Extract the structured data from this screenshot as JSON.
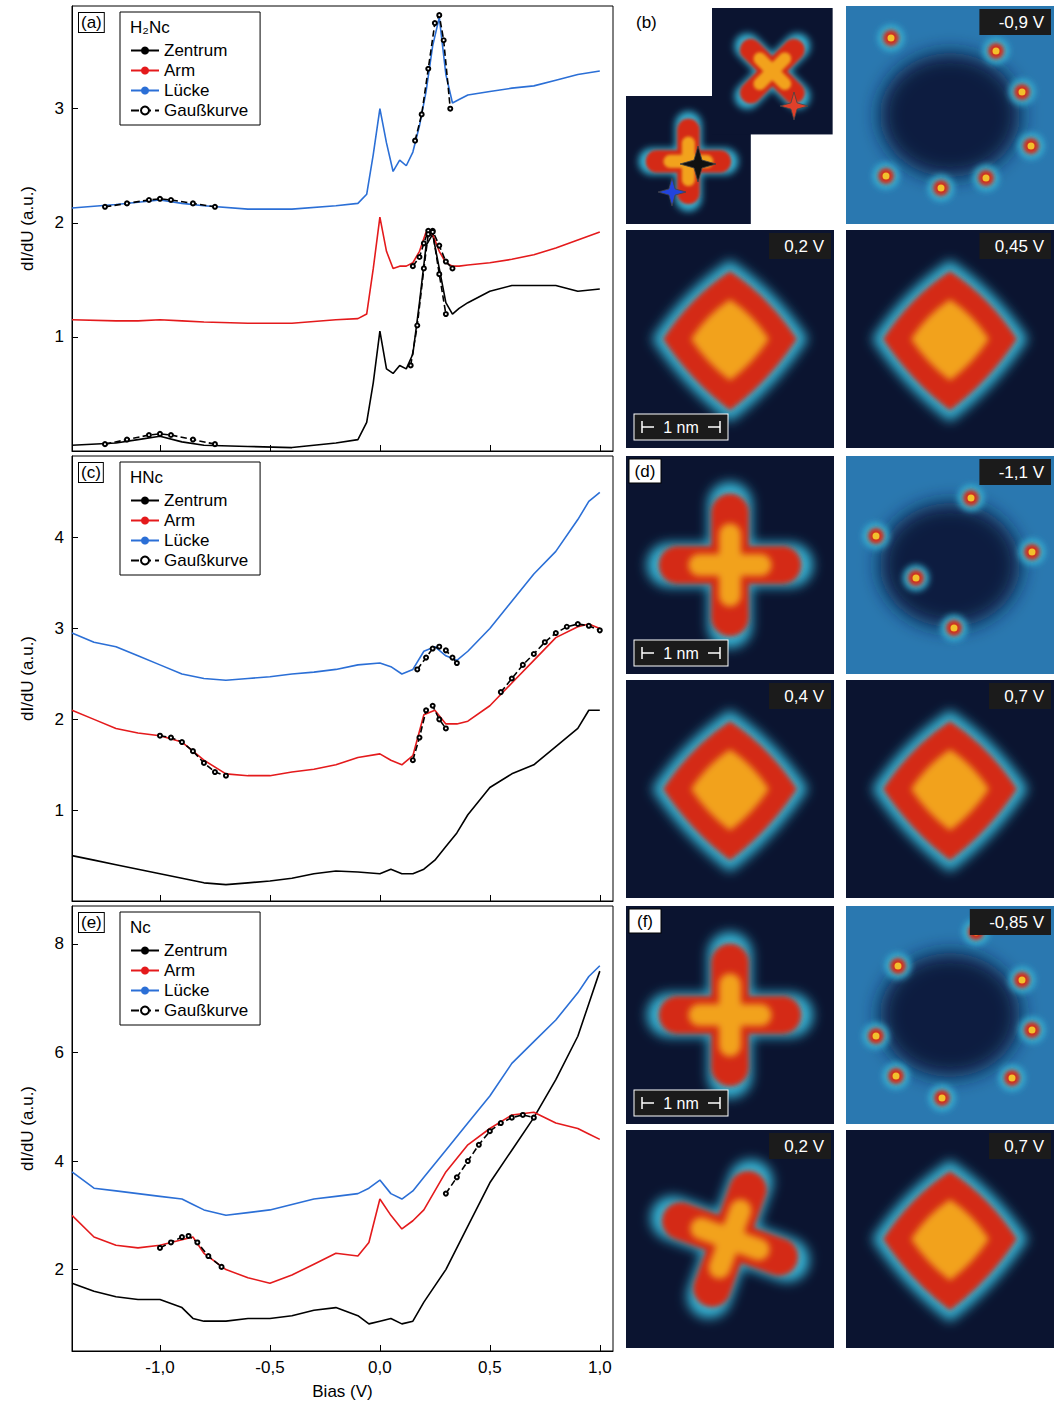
{
  "chart_data": [
    {
      "type": "line",
      "panel": "(a)",
      "legend_title": "H₂Nc",
      "y_label": "dI/dU (a.u.)",
      "legend": "upper left",
      "grid": false,
      "tick_labels": "y",
      "xlim": [
        -1.4,
        1.06
      ],
      "xticks": [
        {
          "value": -1,
          "label": "-1,0"
        },
        {
          "value": -0.5,
          "label": "-0,5"
        },
        {
          "value": 0,
          "label": "0,0"
        },
        {
          "value": 0.5,
          "label": "0,5"
        },
        {
          "value": 1,
          "label": "1,0"
        }
      ],
      "ylim": [
        0,
        3.9
      ],
      "yticks": [
        1,
        2,
        3
      ],
      "x": [
        -1.4,
        -1.2,
        -1.1,
        -1.0,
        -0.9,
        -0.8,
        -0.6,
        -0.4,
        -0.2,
        -0.1,
        -0.06,
        -0.03,
        0.0,
        0.03,
        0.06,
        0.09,
        0.12,
        0.15,
        0.18,
        0.21,
        0.24,
        0.27,
        0.3,
        0.33,
        0.36,
        0.4,
        0.5,
        0.6,
        0.7,
        0.8,
        0.9,
        1.0
      ],
      "series": [
        {
          "name": "Zentrum",
          "color": "#000000",
          "values": [
            0.05,
            0.07,
            0.1,
            0.13,
            0.08,
            0.05,
            0.04,
            0.03,
            0.07,
            0.1,
            0.25,
            0.6,
            1.05,
            0.72,
            0.68,
            0.75,
            0.72,
            0.85,
            1.3,
            1.8,
            1.9,
            1.6,
            1.3,
            1.2,
            1.25,
            1.3,
            1.4,
            1.45,
            1.45,
            1.45,
            1.4,
            1.42
          ]
        },
        {
          "name": "Arm",
          "color": "#e41a1c",
          "values": [
            1.15,
            1.14,
            1.14,
            1.15,
            1.14,
            1.13,
            1.12,
            1.12,
            1.15,
            1.16,
            1.2,
            1.6,
            2.05,
            1.75,
            1.6,
            1.62,
            1.62,
            1.65,
            1.75,
            1.92,
            1.9,
            1.75,
            1.65,
            1.62,
            1.62,
            1.63,
            1.65,
            1.68,
            1.72,
            1.78,
            1.85,
            1.92
          ]
        },
        {
          "name": "Lücke",
          "color": "#2b6fd6",
          "values": [
            2.13,
            2.16,
            2.18,
            2.2,
            2.17,
            2.15,
            2.12,
            2.12,
            2.15,
            2.17,
            2.25,
            2.6,
            3.0,
            2.7,
            2.45,
            2.55,
            2.5,
            2.62,
            2.85,
            3.15,
            3.55,
            3.8,
            3.3,
            3.05,
            3.08,
            3.12,
            3.15,
            3.18,
            3.2,
            3.25,
            3.3,
            3.33
          ]
        },
        {
          "name": "Gaußkurve",
          "color": "#000000",
          "line_style": "dashed",
          "marker": "circle",
          "x": [
            -1.25,
            -1.15,
            -1.05,
            -1.0,
            -0.95,
            -0.85,
            -0.75
          ],
          "values": [
            2.14,
            2.17,
            2.2,
            2.21,
            2.2,
            2.17,
            2.14
          ]
        },
        {
          "name": "Gaußkurve",
          "color": "#000000",
          "line_style": "dashed",
          "marker": "circle",
          "x": [
            0.16,
            0.19,
            0.22,
            0.25,
            0.27,
            0.29,
            0.32
          ],
          "values": [
            2.72,
            2.95,
            3.35,
            3.75,
            3.82,
            3.6,
            3.0
          ]
        },
        {
          "name": "Gaußkurve",
          "color": "#000000",
          "line_style": "dashed",
          "marker": "circle",
          "x": [
            0.15,
            0.18,
            0.2,
            0.22,
            0.24,
            0.27,
            0.3,
            0.33
          ],
          "values": [
            1.62,
            1.7,
            1.82,
            1.93,
            1.93,
            1.8,
            1.66,
            1.6
          ]
        },
        {
          "name": "Gaußkurve",
          "color": "#000000",
          "line_style": "dashed",
          "marker": "circle",
          "x": [
            0.14,
            0.17,
            0.2,
            0.22,
            0.24,
            0.27,
            0.3
          ],
          "values": [
            0.75,
            1.1,
            1.6,
            1.9,
            1.92,
            1.55,
            1.2
          ]
        },
        {
          "name": "Gaußkurve",
          "color": "#000000",
          "line_style": "dashed",
          "marker": "circle",
          "x": [
            -1.25,
            -1.15,
            -1.05,
            -1.0,
            -0.95,
            -0.85,
            -0.75
          ],
          "values": [
            0.06,
            0.1,
            0.14,
            0.15,
            0.14,
            0.1,
            0.06
          ]
        }
      ]
    },
    {
      "type": "line",
      "panel": "(c)",
      "legend_title": "HNc",
      "y_label": "dI/dU (a.u.)",
      "legend": "upper left",
      "grid": false,
      "tick_labels": "y",
      "xlim": [
        -1.4,
        1.06
      ],
      "xticks": [
        {
          "value": -1,
          "label": "-1,0"
        },
        {
          "value": -0.5,
          "label": "-0,5"
        },
        {
          "value": 0,
          "label": "0,0"
        },
        {
          "value": 0.5,
          "label": "0,5"
        },
        {
          "value": 1,
          "label": "1,0"
        }
      ],
      "ylim": [
        0,
        4.9
      ],
      "yticks": [
        1,
        2,
        3,
        4
      ],
      "x": [
        -1.4,
        -1.3,
        -1.2,
        -1.1,
        -1.0,
        -0.9,
        -0.8,
        -0.7,
        -0.6,
        -0.5,
        -0.4,
        -0.3,
        -0.2,
        -0.1,
        0.0,
        0.05,
        0.1,
        0.15,
        0.2,
        0.25,
        0.3,
        0.35,
        0.4,
        0.5,
        0.6,
        0.7,
        0.8,
        0.9,
        0.95,
        1.0
      ],
      "series": [
        {
          "name": "Zentrum",
          "color": "#000000",
          "values": [
            0.5,
            0.45,
            0.4,
            0.35,
            0.3,
            0.25,
            0.2,
            0.18,
            0.2,
            0.22,
            0.25,
            0.3,
            0.33,
            0.32,
            0.3,
            0.35,
            0.3,
            0.3,
            0.35,
            0.45,
            0.6,
            0.75,
            0.95,
            1.25,
            1.4,
            1.5,
            1.7,
            1.9,
            2.1,
            2.1
          ]
        },
        {
          "name": "Arm",
          "color": "#e41a1c",
          "values": [
            2.1,
            2.0,
            1.9,
            1.85,
            1.82,
            1.75,
            1.55,
            1.4,
            1.38,
            1.38,
            1.42,
            1.45,
            1.5,
            1.58,
            1.62,
            1.55,
            1.5,
            1.6,
            2.05,
            2.1,
            1.95,
            1.95,
            1.98,
            2.15,
            2.4,
            2.65,
            2.9,
            3.02,
            3.05,
            3.0
          ]
        },
        {
          "name": "Lücke",
          "color": "#2b6fd6",
          "values": [
            2.95,
            2.85,
            2.8,
            2.7,
            2.6,
            2.5,
            2.45,
            2.43,
            2.45,
            2.47,
            2.5,
            2.52,
            2.55,
            2.6,
            2.62,
            2.58,
            2.5,
            2.55,
            2.75,
            2.8,
            2.7,
            2.65,
            2.75,
            3.0,
            3.3,
            3.6,
            3.85,
            4.2,
            4.4,
            4.5
          ]
        },
        {
          "name": "Gaußkurve",
          "color": "#000000",
          "line_style": "dashed",
          "marker": "circle",
          "x": [
            0.17,
            0.21,
            0.24,
            0.27,
            0.3,
            0.33,
            0.35
          ],
          "values": [
            2.55,
            2.68,
            2.78,
            2.8,
            2.76,
            2.68,
            2.62
          ]
        },
        {
          "name": "Gaußkurve",
          "color": "#000000",
          "line_style": "dashed",
          "marker": "circle",
          "x": [
            0.15,
            0.18,
            0.21,
            0.24,
            0.27,
            0.3
          ],
          "values": [
            1.55,
            1.8,
            2.1,
            2.15,
            2.0,
            1.9
          ]
        },
        {
          "name": "Gaußkurve",
          "color": "#000000",
          "line_style": "dashed",
          "marker": "circle",
          "x": [
            -1.0,
            -0.95,
            -0.9,
            -0.85,
            -0.8,
            -0.75,
            -0.7
          ],
          "values": [
            1.82,
            1.8,
            1.75,
            1.65,
            1.52,
            1.42,
            1.38
          ]
        },
        {
          "name": "Gaußkurve",
          "color": "#000000",
          "line_style": "dashed",
          "marker": "circle",
          "x": [
            0.55,
            0.6,
            0.65,
            0.7,
            0.75,
            0.8,
            0.85,
            0.9,
            0.95,
            1.0
          ],
          "values": [
            2.3,
            2.45,
            2.6,
            2.72,
            2.85,
            2.95,
            3.02,
            3.05,
            3.03,
            2.98
          ]
        }
      ]
    },
    {
      "type": "line",
      "panel": "(e)",
      "legend_title": "Nc",
      "y_label": "dI/dU (a.u.)",
      "x_label": "Bias (V)",
      "legend": "upper left",
      "grid": false,
      "tick_labels": true,
      "xlim": [
        -1.4,
        1.06
      ],
      "xticks": [
        {
          "value": -1,
          "label": "-1,0"
        },
        {
          "value": -0.5,
          "label": "-0,5"
        },
        {
          "value": 0,
          "label": "0,0"
        },
        {
          "value": 0.5,
          "label": "0,5"
        },
        {
          "value": 1,
          "label": "1,0"
        }
      ],
      "ylim": [
        0.5,
        8.7
      ],
      "yticks": [
        2,
        4,
        6,
        8
      ],
      "x": [
        -1.4,
        -1.3,
        -1.2,
        -1.1,
        -1.0,
        -0.9,
        -0.85,
        -0.8,
        -0.7,
        -0.6,
        -0.5,
        -0.4,
        -0.3,
        -0.2,
        -0.1,
        -0.05,
        0.0,
        0.05,
        0.1,
        0.15,
        0.2,
        0.3,
        0.4,
        0.5,
        0.6,
        0.7,
        0.8,
        0.9,
        0.95,
        1.0
      ],
      "series": [
        {
          "name": "Zentrum",
          "color": "#000000",
          "values": [
            1.75,
            1.6,
            1.5,
            1.45,
            1.45,
            1.3,
            1.1,
            1.05,
            1.05,
            1.1,
            1.1,
            1.15,
            1.25,
            1.3,
            1.15,
            1.0,
            1.05,
            1.1,
            1.0,
            1.05,
            1.4,
            2.0,
            2.8,
            3.6,
            4.2,
            4.8,
            5.5,
            6.3,
            6.9,
            7.5
          ]
        },
        {
          "name": "Arm",
          "color": "#e41a1c",
          "values": [
            3.0,
            2.6,
            2.45,
            2.4,
            2.45,
            2.55,
            2.6,
            2.3,
            2.0,
            1.85,
            1.75,
            1.9,
            2.1,
            2.3,
            2.25,
            2.5,
            3.3,
            3.0,
            2.75,
            2.9,
            3.1,
            3.8,
            4.3,
            4.6,
            4.85,
            4.9,
            4.7,
            4.6,
            4.5,
            4.4
          ]
        },
        {
          "name": "Lücke",
          "color": "#2b6fd6",
          "values": [
            3.8,
            3.5,
            3.45,
            3.4,
            3.35,
            3.3,
            3.2,
            3.1,
            3.0,
            3.05,
            3.1,
            3.2,
            3.3,
            3.35,
            3.4,
            3.5,
            3.65,
            3.4,
            3.3,
            3.45,
            3.7,
            4.2,
            4.7,
            5.2,
            5.8,
            6.2,
            6.6,
            7.1,
            7.4,
            7.6
          ]
        },
        {
          "name": "Gaußkurve",
          "color": "#000000",
          "line_style": "dashed",
          "marker": "circle",
          "x": [
            -1.0,
            -0.95,
            -0.9,
            -0.87,
            -0.83,
            -0.78,
            -0.72
          ],
          "values": [
            2.4,
            2.5,
            2.6,
            2.62,
            2.5,
            2.25,
            2.05
          ]
        },
        {
          "name": "Gaußkurve",
          "color": "#000000",
          "line_style": "dashed",
          "marker": "circle",
          "x": [
            0.3,
            0.35,
            0.4,
            0.45,
            0.5,
            0.55,
            0.6,
            0.65,
            0.7
          ],
          "values": [
            3.4,
            3.7,
            4.0,
            4.3,
            4.55,
            4.7,
            4.8,
            4.85,
            4.8
          ]
        }
      ]
    }
  ],
  "images": [
    {
      "panel": "(b)",
      "maps": [
        "-0,9 V",
        "0,2 V",
        "0,45 V"
      ],
      "scale_bar": "1 nm"
    },
    {
      "panel": "(d)",
      "maps": [
        "-1,1 V",
        "0,4 V",
        "0,7 V"
      ],
      "scale_bar": "1 nm"
    },
    {
      "panel": "(f)",
      "maps": [
        "-0,85 V",
        "0,2 V",
        "0,7 V"
      ],
      "scale_bar": "1 nm"
    }
  ]
}
